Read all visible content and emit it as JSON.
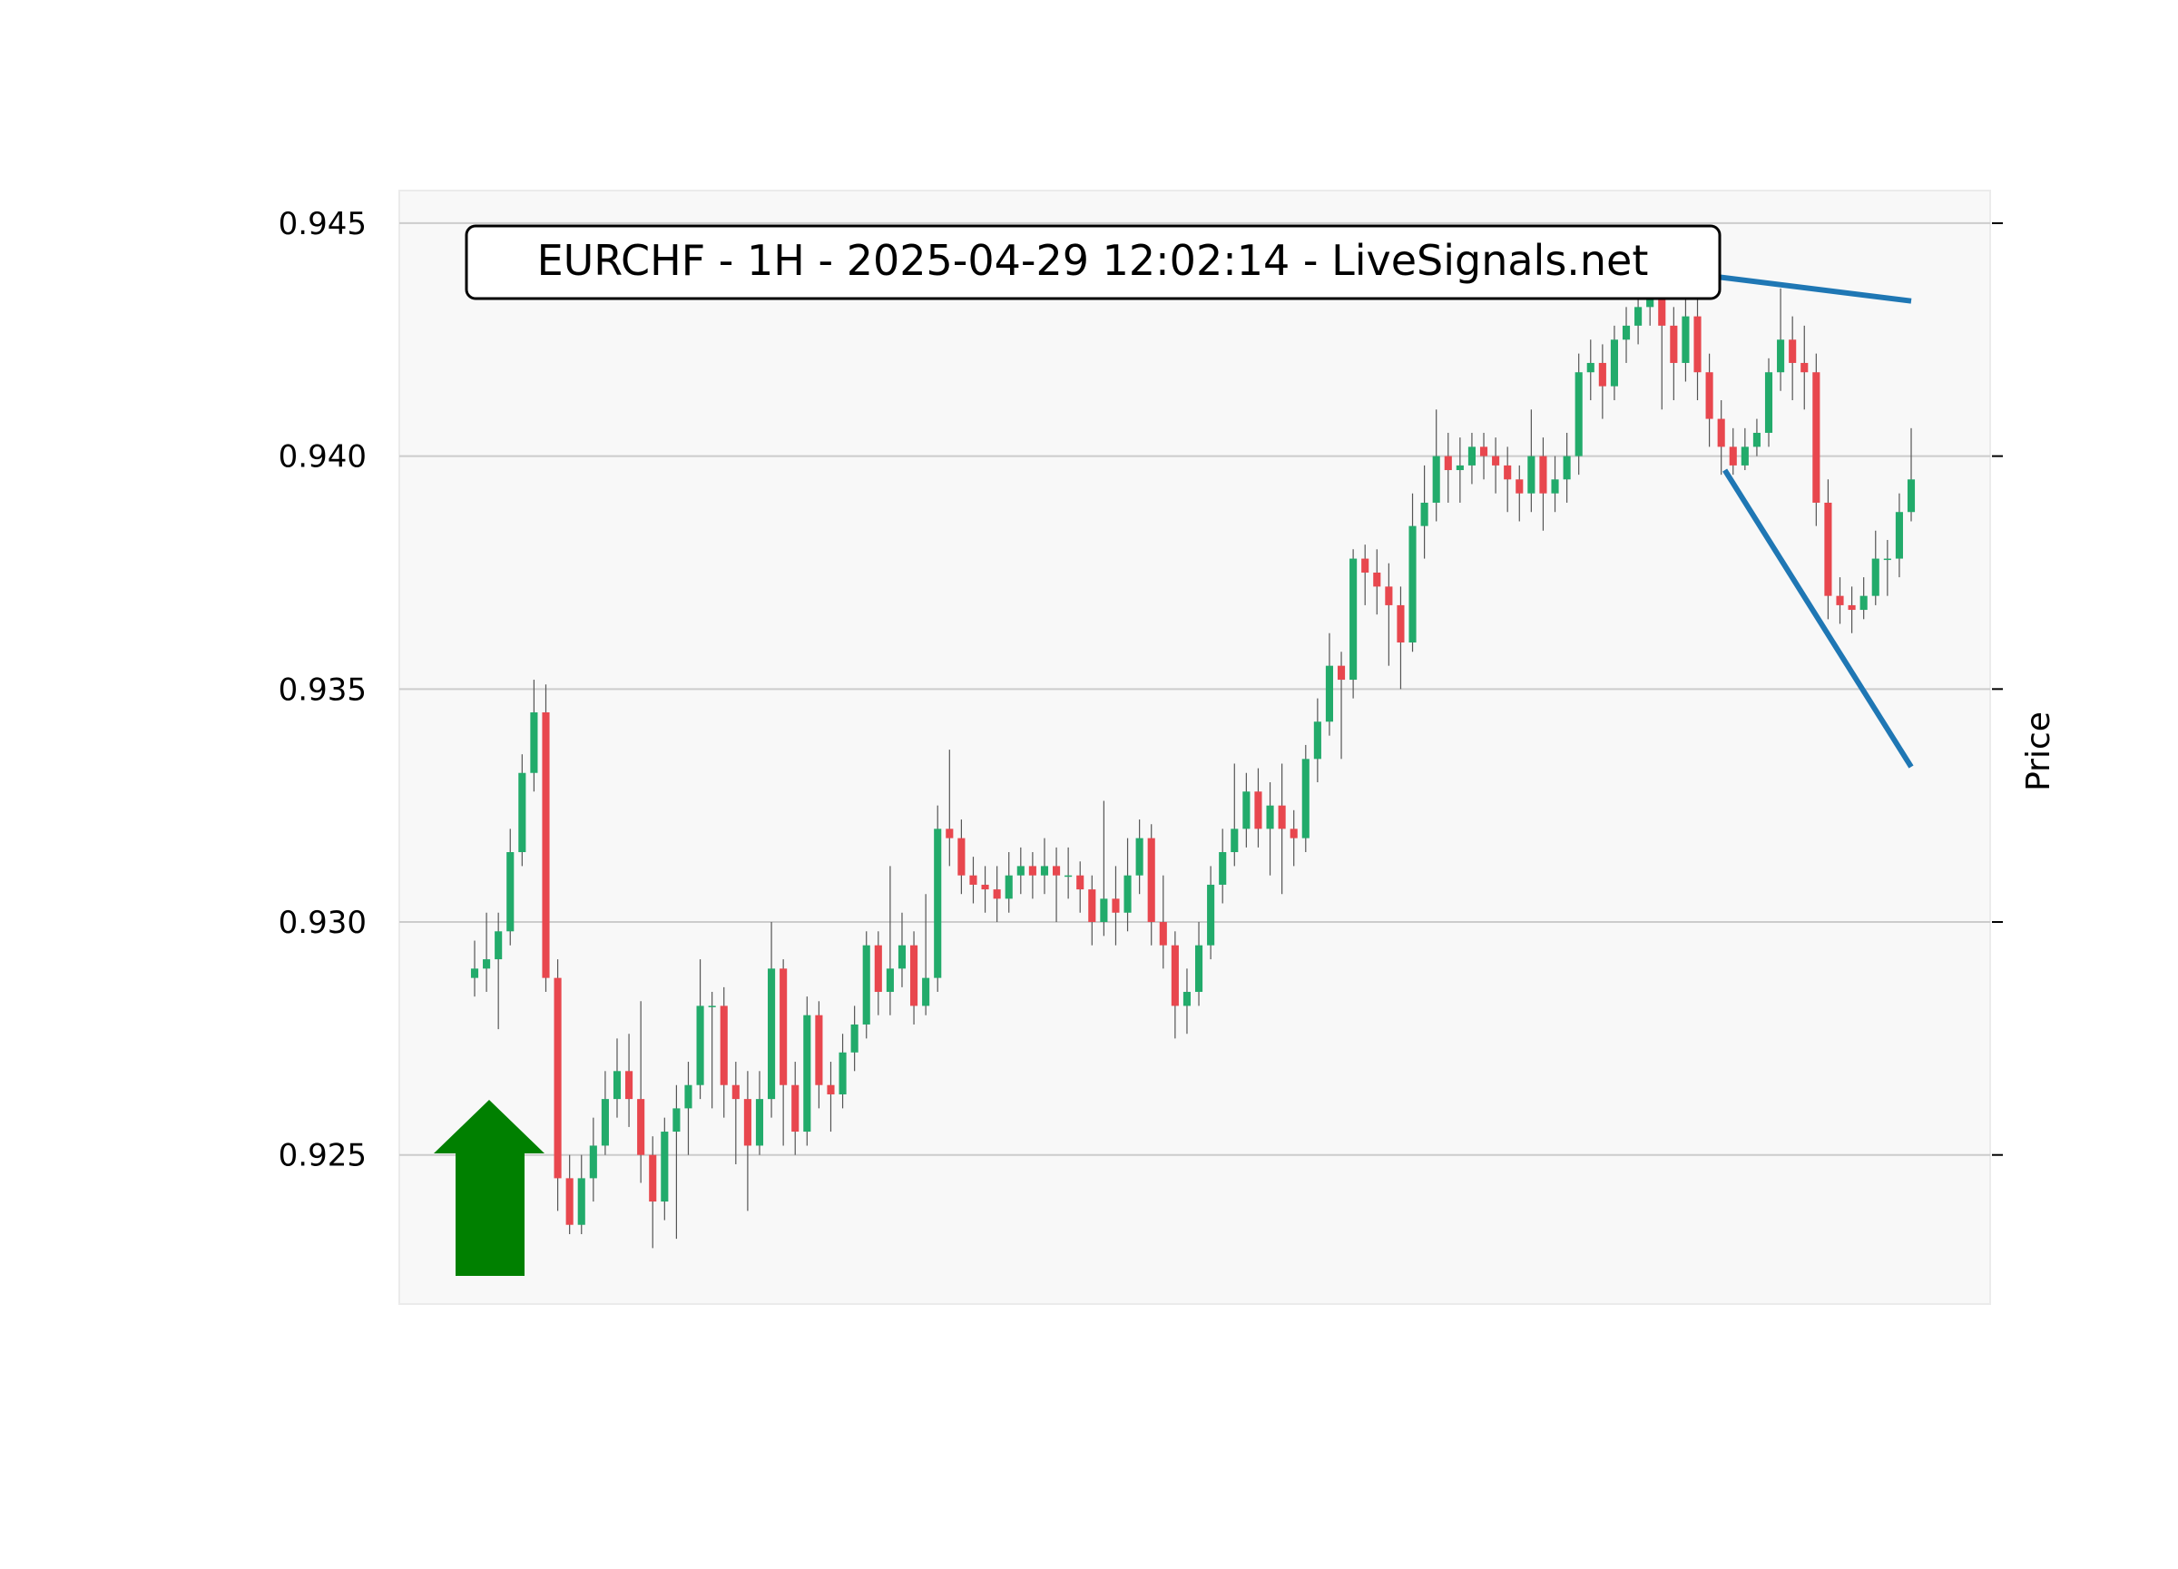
{
  "chart_data": {
    "type": "candlestick",
    "title": "EURCHF - 1H - 2025-04-29 12:02:14 - LiveSignals.net",
    "ylabel": "Price",
    "ylim": [
      0.9218,
      0.9457
    ],
    "yticks": [
      0.925,
      {
        "value": 0.93,
        "label": "0.930"
      },
      0.935,
      {
        "value": 0.94,
        "label": "0.940"
      },
      0.945
    ],
    "grid": true,
    "up_color": "#22ab6b",
    "down_color": "#e8474e",
    "open": [
      0.9288,
      0.929,
      0.9292,
      0.9298,
      0.9315,
      0.9332,
      0.9345,
      0.9288,
      0.9245,
      0.9235,
      0.9245,
      0.9252,
      0.9262,
      0.9268,
      0.9262,
      0.925,
      0.924,
      0.9255,
      0.926,
      0.9265,
      0.9282,
      0.9282,
      0.9265,
      0.9262,
      0.9252,
      0.9262,
      0.929,
      0.9265,
      0.9255,
      0.928,
      0.9265,
      0.9263,
      0.9272,
      0.9278,
      0.9295,
      0.9285,
      0.929,
      0.9295,
      0.9282,
      0.9288,
      0.932,
      0.9318,
      0.931,
      0.9308,
      0.9307,
      0.9305,
      0.931,
      0.9312,
      0.931,
      0.9312,
      0.931,
      0.931,
      0.9307,
      0.93,
      0.9305,
      0.9302,
      0.931,
      0.9318,
      0.93,
      0.9295,
      0.9282,
      0.9285,
      0.9295,
      0.9308,
      0.9315,
      0.932,
      0.9328,
      0.932,
      0.9325,
      0.932,
      0.9318,
      0.9335,
      0.9343,
      0.9355,
      0.9352,
      0.9378,
      0.9375,
      0.9372,
      0.9368,
      0.936,
      0.9385,
      0.939,
      0.94,
      0.9397,
      0.9398,
      0.9402,
      0.94,
      0.9398,
      0.9395,
      0.9392,
      0.94,
      0.9392,
      0.9395,
      0.94,
      0.9418,
      0.942,
      0.9415,
      0.9425,
      0.9428,
      0.9432,
      0.9435,
      0.9428,
      0.942,
      0.943,
      0.9418,
      0.9408,
      0.9402,
      0.9398,
      0.9402,
      0.9405,
      0.9418,
      0.9425,
      0.942,
      0.9418,
      0.939,
      0.937,
      0.9368,
      0.9367,
      0.937,
      0.9378,
      0.9378,
      0.9388
    ],
    "high": [
      0.9296,
      0.9302,
      0.9302,
      0.932,
      0.9336,
      0.9352,
      0.9351,
      0.9292,
      0.925,
      0.925,
      0.9258,
      0.9268,
      0.9275,
      0.9276,
      0.9283,
      0.9254,
      0.9258,
      0.9265,
      0.927,
      0.9292,
      0.9285,
      0.9286,
      0.927,
      0.9268,
      0.9268,
      0.93,
      0.9292,
      0.927,
      0.9284,
      0.9283,
      0.927,
      0.9276,
      0.9282,
      0.9298,
      0.9298,
      0.9312,
      0.9302,
      0.9298,
      0.9306,
      0.9325,
      0.9337,
      0.9322,
      0.9314,
      0.9312,
      0.9312,
      0.9315,
      0.9316,
      0.9315,
      0.9318,
      0.9316,
      0.9316,
      0.9313,
      0.931,
      0.9326,
      0.9312,
      0.9318,
      0.9322,
      0.9321,
      0.931,
      0.9298,
      0.929,
      0.93,
      0.9312,
      0.932,
      0.9334,
      0.9332,
      0.9333,
      0.933,
      0.9334,
      0.9324,
      0.9338,
      0.9348,
      0.9362,
      0.9358,
      0.938,
      0.9381,
      0.938,
      0.9377,
      0.9372,
      0.9392,
      0.9398,
      0.941,
      0.9405,
      0.9404,
      0.9405,
      0.9405,
      0.9404,
      0.9402,
      0.9398,
      0.941,
      0.9404,
      0.94,
      0.9405,
      0.9422,
      0.9425,
      0.9424,
      0.9428,
      0.9432,
      0.9438,
      0.944,
      0.9438,
      0.9432,
      0.9436,
      0.9434,
      0.9422,
      0.9412,
      0.9406,
      0.9406,
      0.9408,
      0.9421,
      0.9436,
      0.943,
      0.9428,
      0.9422,
      0.9395,
      0.9374,
      0.9372,
      0.9374,
      0.9384,
      0.9382,
      0.9392,
      0.9406
    ],
    "low": [
      0.9284,
      0.9285,
      0.9277,
      0.9295,
      0.9312,
      0.9328,
      0.9285,
      0.9238,
      0.9233,
      0.9233,
      0.924,
      0.925,
      0.9258,
      0.9256,
      0.9244,
      0.923,
      0.9236,
      0.9232,
      0.925,
      0.9262,
      0.926,
      0.9258,
      0.9248,
      0.9238,
      0.925,
      0.9258,
      0.9252,
      0.925,
      0.9252,
      0.926,
      0.9255,
      0.926,
      0.9268,
      0.9275,
      0.928,
      0.928,
      0.9286,
      0.9278,
      0.928,
      0.9285,
      0.9312,
      0.9306,
      0.9304,
      0.9302,
      0.93,
      0.9302,
      0.9306,
      0.9305,
      0.9306,
      0.93,
      0.9305,
      0.9302,
      0.9295,
      0.9297,
      0.9295,
      0.9298,
      0.9306,
      0.9295,
      0.929,
      0.9275,
      0.9276,
      0.9282,
      0.9292,
      0.9304,
      0.9312,
      0.9316,
      0.9316,
      0.931,
      0.9306,
      0.9312,
      0.9315,
      0.933,
      0.934,
      0.9335,
      0.9348,
      0.9368,
      0.9366,
      0.9355,
      0.935,
      0.9358,
      0.9378,
      0.9386,
      0.939,
      0.939,
      0.9394,
      0.9395,
      0.9392,
      0.9388,
      0.9386,
      0.9388,
      0.9384,
      0.9388,
      0.939,
      0.9396,
      0.9412,
      0.9408,
      0.9412,
      0.942,
      0.9424,
      0.9428,
      0.941,
      0.9412,
      0.9416,
      0.9412,
      0.9402,
      0.9396,
      0.9396,
      0.9397,
      0.94,
      0.9402,
      0.9414,
      0.9412,
      0.941,
      0.9385,
      0.9365,
      0.9364,
      0.9362,
      0.9365,
      0.9368,
      0.937,
      0.9374,
      0.9386
    ],
    "close": [
      0.929,
      0.9292,
      0.9298,
      0.9315,
      0.9332,
      0.9345,
      0.9288,
      0.9245,
      0.9235,
      0.9245,
      0.9252,
      0.9262,
      0.9268,
      0.9262,
      0.925,
      0.924,
      0.9255,
      0.926,
      0.9265,
      0.9282,
      0.9282,
      0.9265,
      0.9262,
      0.9252,
      0.9262,
      0.929,
      0.9265,
      0.9255,
      0.928,
      0.9265,
      0.9263,
      0.9272,
      0.9278,
      0.9295,
      0.9285,
      0.929,
      0.9295,
      0.9282,
      0.9288,
      0.932,
      0.9318,
      0.931,
      0.9308,
      0.9307,
      0.9305,
      0.931,
      0.9312,
      0.931,
      0.9312,
      0.931,
      0.931,
      0.9307,
      0.93,
      0.9305,
      0.9302,
      0.931,
      0.9318,
      0.93,
      0.9295,
      0.9282,
      0.9285,
      0.9295,
      0.9308,
      0.9315,
      0.932,
      0.9328,
      0.932,
      0.9325,
      0.932,
      0.9318,
      0.9335,
      0.9343,
      0.9355,
      0.9352,
      0.9378,
      0.9375,
      0.9372,
      0.9368,
      0.936,
      0.9385,
      0.939,
      0.94,
      0.9397,
      0.9398,
      0.9402,
      0.94,
      0.9398,
      0.9395,
      0.9392,
      0.94,
      0.9392,
      0.9395,
      0.94,
      0.9418,
      0.942,
      0.9415,
      0.9425,
      0.9428,
      0.9432,
      0.9435,
      0.9428,
      0.942,
      0.943,
      0.9418,
      0.9408,
      0.9402,
      0.9398,
      0.9402,
      0.9405,
      0.9418,
      0.9425,
      0.942,
      0.9418,
      0.939,
      0.937,
      0.9368,
      0.9367,
      0.937,
      0.9378,
      0.9378,
      0.9388,
      0.9395
    ],
    "trend_lines": [
      {
        "color": "#1f77b4",
        "x": [
          104.6,
          121
        ],
        "values": [
          0.94385,
          0.94333
        ]
      },
      {
        "color": "#1f77b4",
        "x": [
          105.3,
          121
        ],
        "values": [
          0.9397,
          0.93333
        ]
      }
    ]
  }
}
